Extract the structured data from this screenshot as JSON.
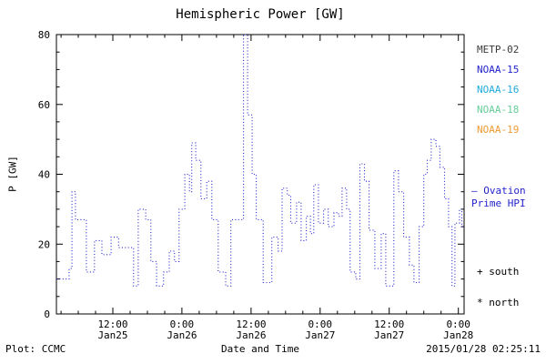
{
  "footer": {
    "left": "Plot: CCMC",
    "right": "2015/01/28 02:25:11"
  },
  "chart_data": {
    "type": "line",
    "subtype": "dotted-step",
    "title": "Hemispheric Power [GW]",
    "xlabel": "Date and Time",
    "ylabel": "P [GW]",
    "ylim": [
      0,
      80
    ],
    "xlim_hours": [
      2.2,
      73
    ],
    "grid": false,
    "line_color": "#2323cc",
    "axis_color": "#000000",
    "y_ticks": [
      0,
      20,
      40,
      60,
      80
    ],
    "x_ticks": [
      {
        "hour": 12,
        "time": "12:00",
        "date": "Jan25"
      },
      {
        "hour": 24,
        "time": "0:00",
        "date": "Jan26"
      },
      {
        "hour": 36,
        "time": "12:00",
        "date": "Jan26"
      },
      {
        "hour": 48,
        "time": "0:00",
        "date": "Jan27"
      },
      {
        "hour": 60,
        "time": "12:00",
        "date": "Jan27"
      },
      {
        "hour": 72,
        "time": "0:00",
        "date": "Jan28"
      }
    ],
    "legend": {
      "satellites": [
        {
          "label": "METP-02",
          "color": "#3a3a3a"
        },
        {
          "label": "NOAA-15",
          "color": "#2323cc"
        },
        {
          "label": "NOAA-16",
          "color": "#22aadd"
        },
        {
          "label": "NOAA-18",
          "color": "#66cc99"
        },
        {
          "label": "NOAA-19",
          "color": "#ee9933"
        }
      ],
      "ovation_line1": "— Ovation",
      "ovation_line2": "Prime HPI",
      "south_marker": "+ south",
      "north_marker": "* north"
    },
    "series": [
      {
        "name": "Hemispheric Power (Ovation Prime HPI)",
        "x_unit": "hours after 2015-01-25 00:00",
        "y_unit": "GW",
        "points_hour_gw": [
          [
            2.2,
            10
          ],
          [
            4.4,
            13
          ],
          [
            4.9,
            35
          ],
          [
            5.5,
            27
          ],
          [
            7.4,
            12
          ],
          [
            8.8,
            21
          ],
          [
            10.1,
            17
          ],
          [
            11.7,
            22
          ],
          [
            13.0,
            19
          ],
          [
            15.6,
            8
          ],
          [
            16.4,
            30
          ],
          [
            17.7,
            27
          ],
          [
            18.6,
            15
          ],
          [
            19.6,
            8
          ],
          [
            20.8,
            12
          ],
          [
            21.8,
            18
          ],
          [
            22.7,
            15
          ],
          [
            23.5,
            30
          ],
          [
            24.5,
            40
          ],
          [
            25.3,
            35
          ],
          [
            25.7,
            49
          ],
          [
            26.4,
            44
          ],
          [
            27.3,
            33
          ],
          [
            28.3,
            38
          ],
          [
            29.2,
            27
          ],
          [
            30.3,
            12
          ],
          [
            31.6,
            8
          ],
          [
            32.5,
            27
          ],
          [
            34.7,
            80
          ],
          [
            35.4,
            57
          ],
          [
            36.2,
            40
          ],
          [
            36.9,
            27
          ],
          [
            38.1,
            9
          ],
          [
            39.6,
            22
          ],
          [
            40.7,
            18
          ],
          [
            41.4,
            36
          ],
          [
            42.3,
            34
          ],
          [
            42.9,
            26
          ],
          [
            43.9,
            32
          ],
          [
            44.7,
            21
          ],
          [
            45.6,
            28
          ],
          [
            46.3,
            23
          ],
          [
            46.9,
            37
          ],
          [
            47.7,
            26
          ],
          [
            48.6,
            30
          ],
          [
            49.4,
            25
          ],
          [
            50.4,
            29
          ],
          [
            51.2,
            28
          ],
          [
            51.8,
            36
          ],
          [
            52.6,
            30
          ],
          [
            53.2,
            12
          ],
          [
            54.2,
            10
          ],
          [
            54.9,
            43
          ],
          [
            55.7,
            38
          ],
          [
            56.5,
            24
          ],
          [
            57.5,
            13
          ],
          [
            58.6,
            23
          ],
          [
            59.4,
            8
          ],
          [
            60.8,
            41
          ],
          [
            61.6,
            35
          ],
          [
            62.5,
            22
          ],
          [
            63.5,
            14
          ],
          [
            64.3,
            9
          ],
          [
            65.2,
            25
          ],
          [
            66.0,
            40
          ],
          [
            66.6,
            44
          ],
          [
            67.3,
            50
          ],
          [
            68.1,
            48
          ],
          [
            68.8,
            42
          ],
          [
            69.6,
            33
          ],
          [
            70.3,
            25
          ],
          [
            70.9,
            8
          ],
          [
            71.4,
            26
          ],
          [
            72.2,
            30
          ],
          [
            72.6,
            25
          ]
        ]
      }
    ]
  }
}
